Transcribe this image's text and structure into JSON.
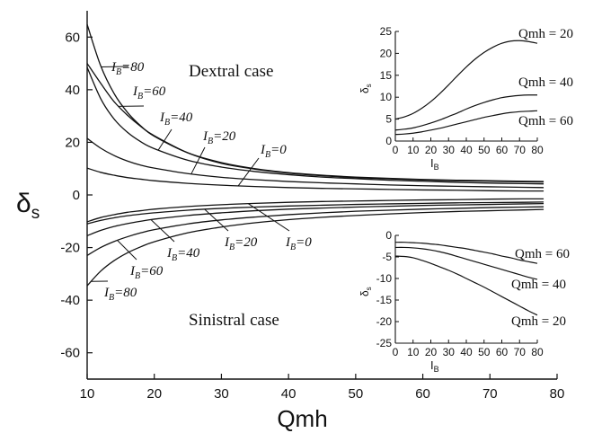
{
  "chart_data": [
    {
      "type": "line",
      "id": "main",
      "xlabel": "Qmh",
      "ylabel_main": "δ",
      "ylabel_sub": "s",
      "xlim": [
        10,
        80
      ],
      "ylim": [
        -70,
        70
      ],
      "xticks": [
        10,
        20,
        30,
        40,
        50,
        60,
        70,
        80
      ],
      "yticks": [
        -60,
        -40,
        -20,
        0,
        20,
        40,
        60
      ],
      "x": [
        10,
        12,
        14,
        16,
        18,
        20,
        25,
        30,
        35,
        40,
        45,
        50,
        55,
        60,
        65,
        70,
        75,
        78
      ],
      "annotations": [
        {
          "text": "Dextral case"
        },
        {
          "text": "Sinistral case"
        }
      ],
      "label_prefix": "I",
      "label_sub": "B",
      "series": [
        {
          "name": "80",
          "side": "dextral",
          "values": [
            64.8,
            49.2,
            38.6,
            31.4,
            26.2,
            22.3,
            16.0,
            12.3,
            10.0,
            8.5,
            7.5,
            6.8,
            6.3,
            5.9,
            5.6,
            5.4,
            5.2,
            5.1
          ]
        },
        {
          "name": "60",
          "side": "dextral",
          "values": [
            50.0,
            42.5,
            35.5,
            30.3,
            26.0,
            22.5,
            16.0,
            12.0,
            9.8,
            8.3,
            7.3,
            6.6,
            6.1,
            5.7,
            5.4,
            5.2,
            5.0,
            4.9
          ]
        },
        {
          "name": "40",
          "side": "dextral",
          "values": [
            48.5,
            36.7,
            28.9,
            23.8,
            20.2,
            17.6,
            13.2,
            10.6,
            8.9,
            7.7,
            6.8,
            6.2,
            5.6,
            5.2,
            4.8,
            4.5,
            4.3,
            4.2
          ]
        },
        {
          "name": "20",
          "side": "dextral",
          "values": [
            21.5,
            17.8,
            15.0,
            12.9,
            11.3,
            10.2,
            8.1,
            6.7,
            5.8,
            5.1,
            4.6,
            4.2,
            3.8,
            3.5,
            3.3,
            3.1,
            2.9,
            2.8
          ]
        },
        {
          "name": "0",
          "side": "dextral",
          "values": [
            10.2,
            8.6,
            7.5,
            6.6,
            6.0,
            5.4,
            4.4,
            3.7,
            3.2,
            2.8,
            2.5,
            2.3,
            2.1,
            1.9,
            1.8,
            1.6,
            1.5,
            1.5
          ]
        },
        {
          "name": "0",
          "side": "sinistral",
          "values": [
            -10.2,
            -8.6,
            -7.5,
            -6.6,
            -6.0,
            -5.4,
            -4.4,
            -3.7,
            -3.2,
            -2.8,
            -2.5,
            -2.3,
            -2.1,
            -1.9,
            -1.8,
            -1.6,
            -1.5,
            -1.5
          ]
        },
        {
          "name": "20",
          "side": "sinistral",
          "values": [
            -11.0,
            -9.7,
            -8.7,
            -7.9,
            -7.3,
            -6.8,
            -5.8,
            -5.1,
            -4.6,
            -4.2,
            -3.9,
            -3.6,
            -3.4,
            -3.2,
            -3.0,
            -2.9,
            -2.8,
            -2.7
          ]
        },
        {
          "name": "40",
          "side": "sinistral",
          "values": [
            -15.5,
            -13.5,
            -12.0,
            -10.9,
            -10.0,
            -9.2,
            -7.8,
            -6.8,
            -6.0,
            -5.4,
            -5.0,
            -4.6,
            -4.3,
            -4.0,
            -3.8,
            -3.6,
            -3.4,
            -3.3
          ]
        },
        {
          "name": "60",
          "side": "sinistral",
          "values": [
            -23.0,
            -20.0,
            -17.7,
            -15.9,
            -14.4,
            -13.2,
            -11.0,
            -9.5,
            -8.4,
            -7.5,
            -6.8,
            -6.2,
            -5.8,
            -5.4,
            -5.1,
            -4.8,
            -4.6,
            -4.5
          ]
        },
        {
          "name": "80",
          "side": "sinistral",
          "values": [
            -34.5,
            -29.0,
            -25.0,
            -22.0,
            -19.7,
            -17.8,
            -14.4,
            -12.2,
            -10.6,
            -9.4,
            -8.5,
            -7.8,
            -7.2,
            -6.7,
            -6.3,
            -6.0,
            -5.7,
            -5.5
          ]
        }
      ]
    },
    {
      "type": "line",
      "id": "inset-dextral",
      "xlabel": "I",
      "xlabel_sub": "B",
      "ylabel": "δ",
      "ylabel_sub": "s",
      "xlim": [
        0,
        80
      ],
      "ylim": [
        0,
        25
      ],
      "xticks": [
        0,
        10,
        20,
        30,
        40,
        50,
        60,
        70,
        80
      ],
      "yticks": [
        0,
        5,
        10,
        15,
        20,
        25
      ],
      "x": [
        0,
        5,
        10,
        15,
        20,
        25,
        30,
        35,
        40,
        45,
        50,
        55,
        60,
        65,
        70,
        75,
        80
      ],
      "series": [
        {
          "name": "Qmh = 20",
          "values": [
            5.0,
            5.5,
            6.3,
            7.5,
            9.0,
            10.8,
            12.8,
            14.9,
            16.9,
            18.7,
            20.2,
            21.4,
            22.3,
            22.8,
            22.9,
            22.7,
            22.3
          ]
        },
        {
          "name": "Qmh = 40",
          "values": [
            2.5,
            2.7,
            3.0,
            3.5,
            4.1,
            4.8,
            5.6,
            6.4,
            7.3,
            8.1,
            8.8,
            9.4,
            9.9,
            10.2,
            10.4,
            10.5,
            10.5
          ]
        },
        {
          "name": "Qmh = 60",
          "values": [
            1.5,
            1.6,
            1.8,
            2.1,
            2.5,
            2.9,
            3.4,
            3.9,
            4.4,
            4.9,
            5.4,
            5.8,
            6.2,
            6.5,
            6.7,
            6.8,
            6.9
          ]
        }
      ]
    },
    {
      "type": "line",
      "id": "inset-sinistral",
      "xlabel": "I",
      "xlabel_sub": "B",
      "ylabel": "δ",
      "ylabel_sub": "s",
      "xlim": [
        0,
        80
      ],
      "ylim": [
        -25,
        0
      ],
      "xticks": [
        0,
        10,
        20,
        30,
        40,
        50,
        60,
        70,
        80
      ],
      "yticks": [
        -25,
        -20,
        -15,
        -10,
        -5,
        0
      ],
      "x": [
        0,
        5,
        10,
        15,
        20,
        25,
        30,
        35,
        40,
        45,
        50,
        55,
        60,
        65,
        70,
        75,
        80
      ],
      "series": [
        {
          "name": "Qmh = 60",
          "values": [
            -1.6,
            -1.6,
            -1.7,
            -1.8,
            -2.0,
            -2.2,
            -2.5,
            -2.8,
            -3.1,
            -3.5,
            -3.9,
            -4.3,
            -4.8,
            -5.2,
            -5.7,
            -6.1,
            -6.5
          ]
        },
        {
          "name": "Qmh = 40",
          "values": [
            -2.8,
            -2.8,
            -2.9,
            -3.1,
            -3.4,
            -3.8,
            -4.3,
            -4.9,
            -5.5,
            -6.1,
            -6.7,
            -7.3,
            -7.9,
            -8.5,
            -9.1,
            -9.7,
            -10.2
          ]
        },
        {
          "name": "Qmh = 20",
          "values": [
            -4.8,
            -4.9,
            -5.2,
            -5.8,
            -6.5,
            -7.3,
            -8.1,
            -9.0,
            -10.0,
            -11.0,
            -12.0,
            -13.1,
            -14.2,
            -15.3,
            -16.4,
            -17.5,
            -18.5
          ]
        }
      ]
    }
  ]
}
